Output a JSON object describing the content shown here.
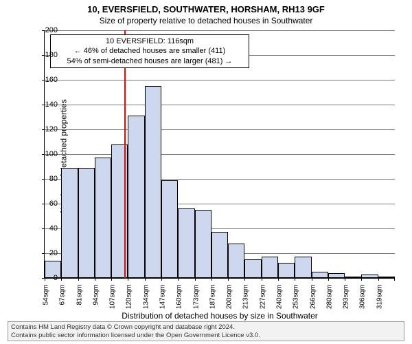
{
  "title_main": "10, EVERSFIELD, SOUTHWATER, HORSHAM, RH13 9GF",
  "title_sub": "Size of property relative to detached houses in Southwater",
  "y_axis_title": "Number of detached properties",
  "x_axis_title": "Distribution of detached houses by size in Southwater",
  "info_box": {
    "line1": "10 EVERSFIELD: 116sqm",
    "line2": "← 46% of detached houses are smaller (411)",
    "line3": "54% of semi-detached houses are larger (481) →"
  },
  "footer": {
    "line1": "Contains HM Land Registry data © Crown copyright and database right 2024.",
    "line2": "Contains public sector information licensed under the Open Government Licence v3.0."
  },
  "chart": {
    "type": "histogram",
    "ylim": [
      0,
      200
    ],
    "ytick_step": 20,
    "bar_fill": "#cdd8ef",
    "bar_border": "#000000",
    "grid_color": "#7a7a7a",
    "marker_color": "#ff0000",
    "background_color": "#ffffff",
    "marker_x_value": 116,
    "x_start": 54,
    "x_step": 13,
    "n_bars": 21,
    "x_labels": [
      "54sqm",
      "67sqm",
      "81sqm",
      "94sqm",
      "107sqm",
      "120sqm",
      "134sqm",
      "147sqm",
      "160sqm",
      "173sqm",
      "187sqm",
      "200sqm",
      "213sqm",
      "227sqm",
      "240sqm",
      "253sqm",
      "266sqm",
      "280sqm",
      "293sqm",
      "306sqm",
      "319sqm"
    ],
    "values": [
      14,
      89,
      89,
      97,
      108,
      131,
      155,
      79,
      56,
      55,
      37,
      28,
      15,
      17,
      12,
      17,
      5,
      4,
      1,
      3,
      1
    ],
    "title_fontsize": 13,
    "label_fontsize": 12,
    "tick_fontsize": 11
  }
}
